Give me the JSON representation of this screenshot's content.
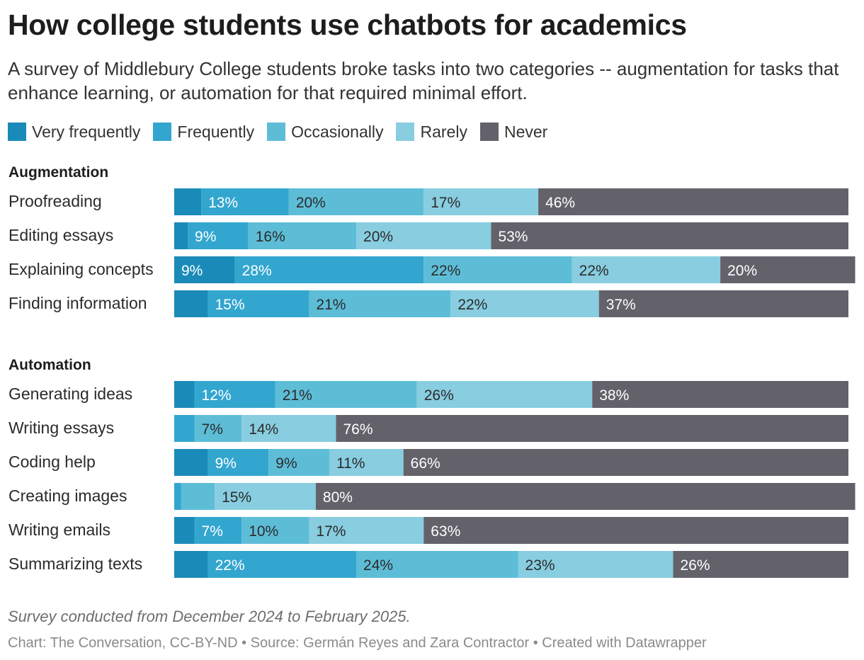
{
  "title": "How college students use chatbots for academics",
  "subtitle": "A survey of Middlebury College students broke tasks into two categories -- augmentation for tasks that enhance learning, or automation for that required minimal effort.",
  "legend": [
    {
      "label": "Very frequently",
      "color": "#1a8bb8"
    },
    {
      "label": "Frequently",
      "color": "#32a6cf"
    },
    {
      "label": "Occasionally",
      "color": "#5dbdd7"
    },
    {
      "label": "Rarely",
      "color": "#88cde0"
    },
    {
      "label": "Never",
      "color": "#63626b"
    }
  ],
  "footnote": "Survey conducted from December 2024 to February 2025.",
  "credit": "Chart: The Conversation, CC-BY-ND • Source: Germán Reyes and Zara Contractor • Created with Datawrapper",
  "chart_data": {
    "type": "bar",
    "orientation": "horizontal-stacked",
    "unit": "%",
    "xlim": [
      0,
      100
    ],
    "series": [
      "Very frequently",
      "Frequently",
      "Occasionally",
      "Rarely",
      "Never"
    ],
    "groups": [
      {
        "name": "Augmentation",
        "rows": [
          {
            "label": "Proofreading",
            "values": [
              4,
              13,
              20,
              17,
              46
            ],
            "labels": [
              "",
              "13%",
              "20%",
              "17%",
              "46%"
            ]
          },
          {
            "label": "Editing essays",
            "values": [
              2,
              9,
              16,
              20,
              53
            ],
            "labels": [
              "",
              "9%",
              "16%",
              "20%",
              "53%"
            ]
          },
          {
            "label": "Explaining concepts",
            "values": [
              9,
              28,
              22,
              22,
              20
            ],
            "labels": [
              "9%",
              "28%",
              "22%",
              "22%",
              "20%"
            ]
          },
          {
            "label": "Finding information",
            "values": [
              5,
              15,
              21,
              22,
              37
            ],
            "labels": [
              "",
              "15%",
              "21%",
              "22%",
              "37%"
            ]
          }
        ]
      },
      {
        "name": "Automation",
        "rows": [
          {
            "label": "Generating ideas",
            "values": [
              3,
              12,
              21,
              26,
              38
            ],
            "labels": [
              "",
              "12%",
              "21%",
              "26%",
              "38%"
            ]
          },
          {
            "label": "Writing essays",
            "values": [
              0,
              3,
              7,
              14,
              76
            ],
            "labels": [
              "",
              "",
              "7%",
              "14%",
              "76%"
            ]
          },
          {
            "label": "Coding help",
            "values": [
              5,
              9,
              9,
              11,
              66
            ],
            "labels": [
              "",
              "9%",
              "9%",
              "11%",
              "66%"
            ]
          },
          {
            "label": "Creating images",
            "values": [
              0,
              1,
              5,
              15,
              80
            ],
            "labels": [
              "",
              "",
              "",
              "15%",
              "80%"
            ]
          },
          {
            "label": "Writing emails",
            "values": [
              3,
              7,
              10,
              17,
              63
            ],
            "labels": [
              "",
              "7%",
              "10%",
              "17%",
              "63%"
            ]
          },
          {
            "label": "Summarizing texts",
            "values": [
              5,
              22,
              24,
              23,
              26
            ],
            "labels": [
              "",
              "22%",
              "24%",
              "23%",
              "26%"
            ]
          }
        ]
      }
    ]
  }
}
